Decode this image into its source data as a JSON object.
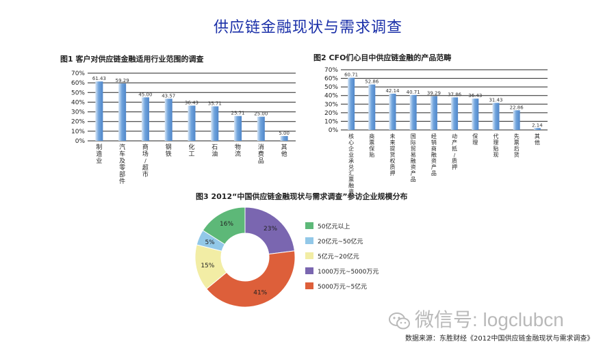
{
  "page": {
    "title": "供应链金融现状与需求调查",
    "watermark": "微信号: logclubcn",
    "source": "数据来源：东胜财经《2012中国供应链金融现状与需求调查》"
  },
  "chart_data": [
    {
      "type": "bar",
      "title": "图1 客户对供应链金融适用行业范围的调查",
      "categories": [
        "制造业",
        "汽车及零部件",
        "商场/超市",
        "钢铁",
        "化工",
        "石油",
        "物流",
        "消费品",
        "其他"
      ],
      "values": [
        61.43,
        59.29,
        45.0,
        43.57,
        36.43,
        35.71,
        25.71,
        25.0,
        5.0
      ],
      "value_labels": [
        "61.43",
        "59.29",
        "45.00",
        "43.57",
        "36.43",
        "35.71",
        "25.71",
        "25.00",
        "5.00"
      ],
      "yticks": [
        "0%",
        "10%",
        "20%",
        "30%",
        "40%",
        "50%",
        "60%",
        "70%"
      ],
      "ylim": [
        0,
        70
      ],
      "grid": true,
      "colors": {
        "bar": "#6fa3dc",
        "bar_light": "#d6e6f7",
        "grid": "#222222"
      }
    },
    {
      "type": "bar",
      "title": "图2 CFO们心目中供应链金融的产品范畴",
      "categories": [
        "核心企业承兑汇票融资",
        "商票保贴",
        "未来提货权质押",
        "国际贸易融资产品",
        "经销商融资产品",
        "动产抵/质押",
        "保理",
        "代理贴现",
        "先票后货",
        "其他"
      ],
      "values": [
        60.71,
        52.86,
        42.14,
        40.71,
        39.29,
        37.86,
        36.43,
        31.43,
        22.86,
        2.14
      ],
      "value_labels": [
        "60.71",
        "52.86",
        "42.14",
        "40.71",
        "39.29",
        "37.86",
        "36.43",
        "31.43",
        "22.86",
        "2.14"
      ],
      "yticks": [
        "0%",
        "10%",
        "20%",
        "30%",
        "40%",
        "50%",
        "60%",
        "70%"
      ],
      "ylim": [
        0,
        70
      ],
      "grid": true,
      "colors": {
        "bar": "#6fa3dc",
        "bar_light": "#d6e6f7",
        "grid": "#222222"
      }
    },
    {
      "type": "pie",
      "title": "图3 2012“中国供应链金融现状与需求调查”参访企业规模分布",
      "donut": true,
      "slices": [
        {
          "label": "50亿元以上",
          "value": 16,
          "text": "16%",
          "color": "#5db878"
        },
        {
          "label": "20亿元~50亿元",
          "value": 5,
          "text": "5%",
          "color": "#92c8e8"
        },
        {
          "label": "5亿元~20亿元",
          "value": 15,
          "text": "15%",
          "color": "#f2eda5"
        },
        {
          "label": "1000万元~5000万元",
          "value": 23,
          "text": "23%",
          "color": "#7a66b0"
        },
        {
          "label": "5000万元~5亿元",
          "value": 41,
          "text": "41%",
          "color": "#dd5f3a"
        }
      ],
      "order_clockwise_from_top": [
        3,
        4,
        2,
        1,
        0
      ],
      "legend_position": "right"
    }
  ]
}
